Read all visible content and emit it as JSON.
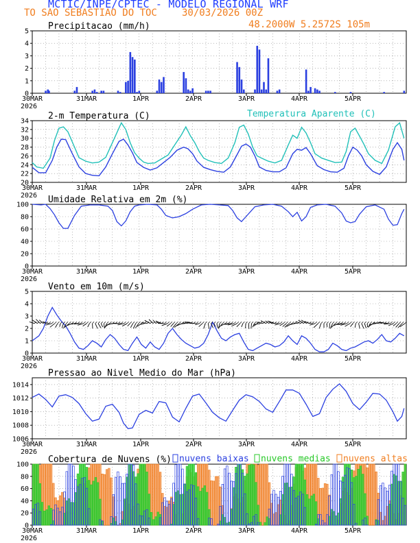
{
  "header": {
    "title": "MCTIC/INPE/CPTEC - MODELO REGIONAL WRF",
    "location": "TO SAO SEBASTIAO DO TOC",
    "run": "30/03/2026 00Z",
    "coords": "48.2000W 5.2572S 105m"
  },
  "colors": {
    "title": "#1e3cff",
    "orange": "#f07d1e",
    "blue": "#2a3fe0",
    "cyan": "#20c0b8",
    "green": "#28c828",
    "black": "#000000"
  },
  "days": [
    "30MAR",
    "31MAR",
    "1APR",
    "2APR",
    "3APR",
    "4APR",
    "5APR"
  ],
  "year": "2026",
  "chart_data": [
    {
      "type": "bar",
      "name": "precip",
      "title": "Precipitacao (mm/h)",
      "ylim": [
        0,
        5
      ],
      "yticks": [
        0,
        1,
        2,
        3,
        4,
        5
      ],
      "x": [
        6,
        7,
        7.5,
        19,
        20,
        27,
        28,
        29,
        31,
        32,
        38.5,
        39.5,
        42,
        43,
        44,
        45,
        46,
        47,
        48,
        56,
        57,
        58,
        59,
        68,
        69,
        70,
        71,
        72,
        78,
        79,
        80,
        92,
        93,
        94,
        95,
        100,
        101,
        102,
        103,
        104,
        105,
        106,
        110,
        111,
        123,
        124,
        125,
        127,
        128,
        129,
        136,
        143,
        158,
        167
      ],
      "values": [
        0.2,
        0.3,
        0.2,
        0.2,
        0.5,
        0.2,
        0.3,
        0.1,
        0.2,
        0.2,
        0.2,
        0.1,
        0.9,
        1.0,
        3.3,
        2.9,
        2.7,
        0.1,
        0.2,
        0.2,
        1.1,
        0.9,
        1.3,
        1.7,
        1.2,
        0.3,
        0.2,
        0.4,
        0.2,
        0.2,
        0.2,
        2.5,
        2.1,
        1.1,
        0.3,
        0.3,
        3.8,
        3.5,
        0.3,
        0.9,
        0.3,
        2.8,
        0.2,
        0.3,
        1.9,
        0.2,
        0.5,
        0.4,
        0.3,
        0.2,
        0.1,
        0.1,
        0.1,
        0.2
      ]
    },
    {
      "type": "line",
      "name": "temperature",
      "title": "2-m Temperatura (C)",
      "legend": "Temperatura Aparente (C)",
      "ylim": [
        20,
        34
      ],
      "yticks": [
        20,
        22,
        24,
        26,
        28,
        30,
        32,
        34
      ],
      "series": [
        {
          "name": "Temperatura Aparente",
          "color": "cyan",
          "x": [
            0,
            2,
            5,
            8,
            10,
            12,
            14,
            16,
            19,
            21,
            24,
            27,
            30,
            33,
            36,
            40,
            42,
            44,
            46,
            48,
            50,
            52,
            55,
            58,
            61,
            64,
            67,
            69,
            71,
            73,
            75,
            77,
            79,
            82,
            85,
            88,
            91,
            93,
            95,
            97,
            99,
            101,
            103,
            106,
            109,
            112,
            115,
            117,
            119,
            121,
            123,
            125,
            127,
            130,
            133,
            136,
            139,
            141,
            143,
            145,
            147,
            149,
            151,
            154,
            157,
            160,
            163,
            165,
            167
          ],
          "values": [
            24.5,
            23.5,
            23.2,
            25.5,
            29.5,
            32.3,
            32.6,
            31.5,
            28,
            25.6,
            24.8,
            24.4,
            24.6,
            25.7,
            29,
            33.5,
            32,
            29,
            26.7,
            25.5,
            24.6,
            24.3,
            24.4,
            25.3,
            26.2,
            28.5,
            30.8,
            32.6,
            30.6,
            29,
            27,
            25.5,
            25,
            24.5,
            24.3,
            25.5,
            29,
            32.5,
            33,
            31,
            28,
            26,
            25.5,
            24.8,
            24.4,
            25,
            28.5,
            30.7,
            30,
            32.5,
            31.2,
            29,
            26.5,
            25.5,
            25,
            24.5,
            24.6,
            27,
            31.5,
            32.3,
            30.5,
            28.6,
            26.5,
            25,
            24.3,
            27.3,
            32.6,
            33.5,
            30
          ]
        },
        {
          "name": "Temperatura 2m",
          "color": "blue",
          "x": [
            0,
            3,
            6,
            9,
            11,
            13,
            15,
            18,
            21,
            24,
            27,
            30,
            33,
            36,
            39,
            41,
            43,
            45,
            47,
            50,
            53,
            56,
            59,
            62,
            65,
            68,
            70,
            72,
            74,
            77,
            80,
            83,
            86,
            89,
            92,
            94,
            96,
            98,
            100,
            102,
            105,
            108,
            111,
            114,
            117,
            119,
            121,
            123,
            125,
            128,
            131,
            134,
            137,
            140,
            142,
            144,
            146,
            148,
            150,
            153,
            156,
            159,
            162,
            164,
            166,
            167
          ],
          "values": [
            23.4,
            22.2,
            22.2,
            25,
            28,
            29.8,
            29.7,
            26.5,
            23.5,
            22,
            21.6,
            21.5,
            23.5,
            26.5,
            29.3,
            29.8,
            28.5,
            26.7,
            24.5,
            23.4,
            22.8,
            23.3,
            24.5,
            25.7,
            27.3,
            28,
            27.6,
            26.5,
            24.8,
            23.4,
            22.9,
            22.5,
            22.3,
            23.5,
            26.3,
            28.2,
            28.7,
            28,
            26,
            23.5,
            22.7,
            22.4,
            22.4,
            23.3,
            26.5,
            27.5,
            27.3,
            27.9,
            26.5,
            23.8,
            22.9,
            22.4,
            22.3,
            23.2,
            26,
            28,
            27.3,
            26,
            24,
            22.5,
            21.8,
            23.5,
            27.5,
            29,
            27.5,
            25
          ]
        }
      ]
    },
    {
      "type": "line",
      "name": "humidity",
      "title": "Umidade Relativa em 2m (%)",
      "ylim": [
        0,
        100
      ],
      "yticks": [
        0,
        20,
        40,
        60,
        80,
        100
      ],
      "x": [
        0,
        4,
        6,
        8,
        10,
        12,
        14,
        16,
        19,
        22,
        26,
        30,
        34,
        36,
        38,
        40,
        42,
        44,
        46,
        48,
        52,
        56,
        58,
        60,
        63,
        66,
        69,
        72,
        76,
        80,
        84,
        88,
        90,
        92,
        94,
        96,
        98,
        100,
        104,
        108,
        112,
        115,
        117,
        119,
        121,
        123,
        125,
        128,
        132,
        136,
        139,
        141,
        143,
        145,
        147,
        150,
        154,
        158,
        160,
        162,
        164,
        166,
        167
      ],
      "values": [
        100,
        99,
        100,
        93,
        83,
        70,
        61,
        61,
        82,
        97,
        99,
        99,
        97,
        90,
        72,
        65,
        73,
        88,
        97,
        99,
        100,
        99,
        92,
        82,
        78,
        80,
        85,
        92,
        99,
        100,
        99,
        98,
        90,
        78,
        72,
        80,
        88,
        96,
        99,
        100,
        97,
        88,
        80,
        87,
        73,
        80,
        95,
        99,
        100,
        97,
        86,
        73,
        70,
        72,
        84,
        96,
        99,
        92,
        76,
        66,
        67,
        85,
        92
      ]
    },
    {
      "type": "line",
      "name": "wind",
      "title": "Vento em 10m (m/s)",
      "ylim": [
        0,
        5
      ],
      "yticks": [
        0,
        1,
        2,
        3,
        4,
        5
      ],
      "x": [
        0,
        3,
        5,
        7,
        9,
        11,
        13,
        15,
        17,
        19,
        21,
        23,
        25,
        27,
        29,
        31,
        33,
        35,
        37,
        39,
        41,
        43,
        45,
        47,
        49,
        51,
        53,
        55,
        57,
        59,
        61,
        63,
        65,
        67,
        69,
        71,
        73,
        75,
        77,
        79,
        81,
        83,
        85,
        87,
        89,
        91,
        93,
        95,
        97,
        99,
        101,
        103,
        105,
        107,
        109,
        111,
        113,
        115,
        117,
        119,
        121,
        123,
        125,
        127,
        129,
        131,
        133,
        135,
        137,
        139,
        141,
        143,
        145,
        147,
        149,
        151,
        153,
        155,
        157,
        159,
        161,
        163,
        165,
        167
      ],
      "values": [
        1.0,
        1.4,
        2.0,
        3.0,
        3.7,
        3.1,
        2.6,
        2.2,
        1.6,
        0.9,
        0.4,
        0.3,
        0.6,
        1.0,
        0.8,
        0.5,
        1.1,
        1.5,
        1.2,
        0.7,
        0.3,
        0.2,
        0.8,
        1.3,
        0.7,
        0.4,
        0.9,
        0.5,
        0.3,
        0.8,
        1.6,
        2.0,
        1.5,
        1.1,
        0.8,
        0.6,
        0.4,
        0.5,
        0.8,
        1.5,
        2.5,
        1.8,
        1.2,
        1.0,
        1.3,
        1.5,
        1.6,
        0.9,
        0.3,
        0.2,
        0.4,
        0.6,
        0.8,
        0.7,
        0.5,
        0.6,
        0.9,
        1.4,
        1.0,
        0.7,
        1.4,
        1.2,
        0.8,
        0.3,
        0.1,
        0.1,
        0.3,
        0.8,
        0.6,
        0.3,
        0.2,
        0.4,
        0.5,
        0.7,
        0.9,
        1.0,
        0.8,
        1.1,
        1.5,
        1.0,
        0.9,
        1.2,
        1.6,
        1.4
      ]
    },
    {
      "type": "line",
      "name": "pressure",
      "title": "Pressao ao Nivel Medio do Mar (hPa)",
      "ylim": [
        1006,
        1015
      ],
      "yticks": [
        1006,
        1008,
        1010,
        1012,
        1014
      ],
      "x": [
        0,
        3,
        6,
        9,
        12,
        15,
        18,
        21,
        24,
        27,
        30,
        33,
        36,
        39,
        41,
        43,
        45,
        48,
        51,
        54,
        57,
        60,
        63,
        66,
        69,
        72,
        75,
        78,
        81,
        84,
        87,
        90,
        93,
        96,
        99,
        102,
        105,
        108,
        111,
        114,
        117,
        120,
        123,
        126,
        129,
        132,
        135,
        138,
        141,
        144,
        147,
        150,
        153,
        156,
        159,
        162,
        164,
        166,
        167
      ],
      "values": [
        1012.1,
        1012.6,
        1011.8,
        1010.7,
        1012.3,
        1012.5,
        1012.1,
        1011.2,
        1009.7,
        1008.6,
        1008.9,
        1010.8,
        1011.1,
        1009.9,
        1008.3,
        1007.5,
        1007.6,
        1009.6,
        1010.2,
        1009.8,
        1011.5,
        1011.3,
        1009.2,
        1008.5,
        1010.5,
        1012.3,
        1012.6,
        1011.3,
        1009.9,
        1009.1,
        1008.6,
        1010.2,
        1011.7,
        1012.5,
        1012.2,
        1011.5,
        1010.4,
        1009.9,
        1011.5,
        1013.2,
        1013.2,
        1012.7,
        1011.1,
        1009.3,
        1009.7,
        1012.1,
        1013.3,
        1014.1,
        1013.0,
        1011.2,
        1010.3,
        1011.4,
        1012.7,
        1012.6,
        1011.7,
        1010.0,
        1008.6,
        1009.3,
        1010.5
      ]
    },
    {
      "type": "bar",
      "name": "clouds",
      "title": "Cobertura de Nuvens (%)",
      "legend": [
        "nuvens baixas",
        "nuvens medias",
        "nuvens altas"
      ],
      "ylim": [
        0,
        100
      ],
      "yticks": [
        0,
        20,
        40,
        60,
        80,
        100
      ]
    }
  ]
}
